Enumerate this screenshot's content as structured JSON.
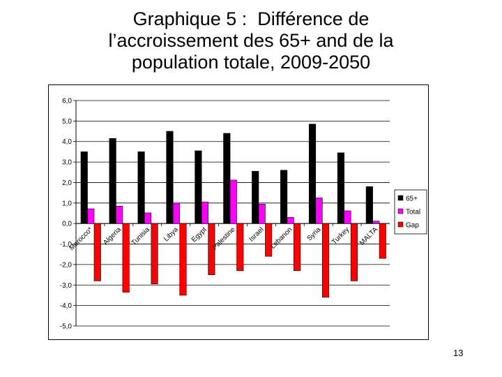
{
  "slide": {
    "title_lines": [
      "Graphique 5 :  Différence de",
      "l’accroissement des 65+ and de la",
      "population totale, 2009-2050"
    ],
    "page_number": "13"
  },
  "chart_data": {
    "type": "bar",
    "title": "",
    "xlabel": "",
    "ylabel": "",
    "categories": [
      "Morocco*",
      "Algeria",
      "Tunisia",
      "Libya",
      "Egypt",
      "Palestine",
      "Israel",
      "Lebanon",
      "Syria",
      "Turkey",
      "MALTA"
    ],
    "series": [
      {
        "name": "65+",
        "color": "#000000",
        "values": [
          3.5,
          4.15,
          3.5,
          4.5,
          3.55,
          4.4,
          2.55,
          2.6,
          4.85,
          3.45,
          1.8
        ]
      },
      {
        "name": "Total",
        "color": "#ff00ff",
        "values": [
          0.72,
          0.85,
          0.52,
          1.0,
          1.05,
          2.12,
          0.95,
          0.3,
          1.25,
          0.62,
          0.12
        ]
      },
      {
        "name": "Gap",
        "color": "#ff0000",
        "values": [
          -2.8,
          -3.35,
          -2.95,
          -3.5,
          -2.5,
          -2.3,
          -1.6,
          -2.3,
          -3.6,
          -2.8,
          -1.7
        ]
      }
    ],
    "ylim": [
      -5.0,
      6.0
    ],
    "yticks": [
      "6,0",
      "5,0",
      "4,0",
      "3,0",
      "2,0",
      "1,0",
      "0,0",
      "-1,0",
      "-2,0",
      "-3,0",
      "-4,0",
      "-5,0"
    ],
    "ytick_values": [
      6,
      5,
      4,
      3,
      2,
      1,
      0,
      -1,
      -2,
      -3,
      -4,
      -5
    ],
    "grid": true,
    "legend_position": "right"
  }
}
